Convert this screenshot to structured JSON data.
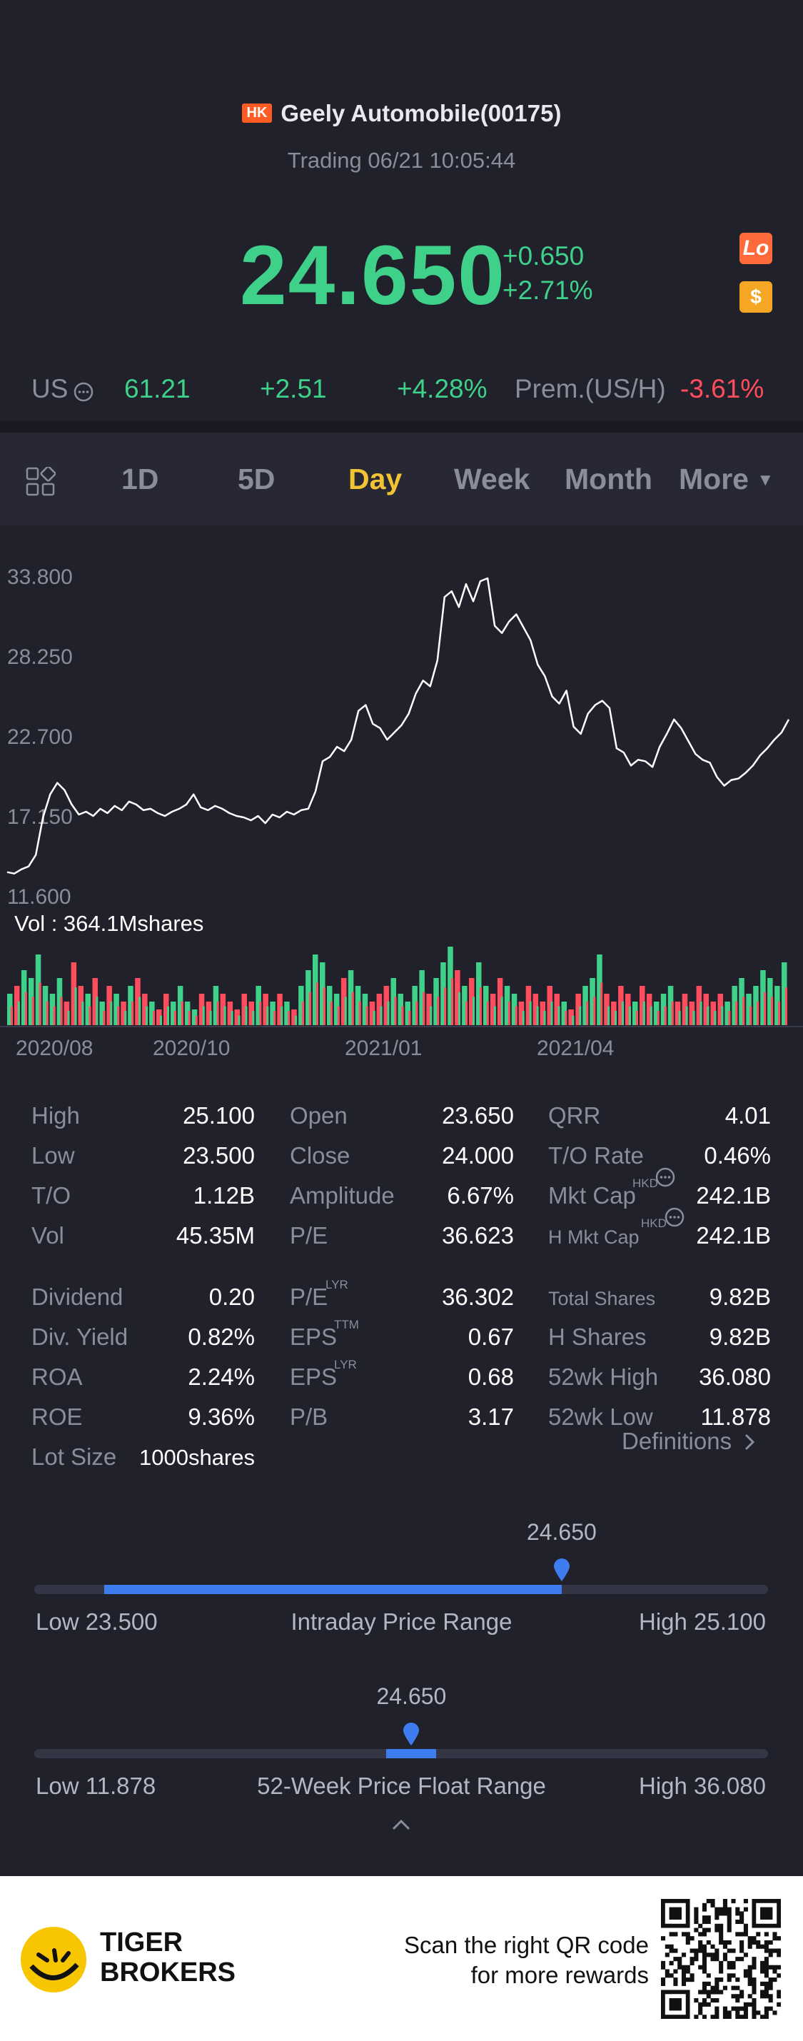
{
  "header": {
    "market_badge": "HK",
    "title": "Geely Automobile(00175)",
    "status": "Trading 06/21 10:05:44"
  },
  "quote": {
    "price": "24.650",
    "change": "+0.650",
    "change_pct": "+2.71%",
    "lo_badge": "Lo",
    "coin_badge": "$"
  },
  "us_row": {
    "label": "US",
    "price": "61.21",
    "change": "+2.51",
    "change_pct": "+4.28%",
    "premium_label": "Prem.(US/H)",
    "premium_value": "-3.61%"
  },
  "tabs": [
    {
      "label": "1D"
    },
    {
      "label": "5D"
    },
    {
      "label": "Day"
    },
    {
      "label": "Week"
    },
    {
      "label": "Month"
    },
    {
      "label": "More"
    }
  ],
  "chart_data": {
    "type": "line",
    "y_ticks": [
      "33.800",
      "28.250",
      "22.700",
      "17.150",
      "11.600"
    ],
    "ylim": [
      11.6,
      33.8
    ],
    "x_ticks": [
      "2020/08",
      "2020/10",
      "2021/01",
      "2021/04"
    ],
    "volume_label": "Vol  : 364.1Mshares",
    "series": [
      {
        "values": [
          13.2,
          13.1,
          13.4,
          13.6,
          14.4,
          17.0,
          18.6,
          19.4,
          18.9,
          17.9,
          17.2,
          17.4,
          17.1,
          17.6,
          17.3,
          17.8,
          17.5,
          18.1,
          17.9,
          17.5,
          17.6,
          17.3,
          17.1,
          17.4,
          17.6,
          17.9,
          18.6,
          17.7,
          17.5,
          17.8,
          17.6,
          17.3,
          17.1,
          17.0,
          16.8,
          17.1,
          16.6,
          17.2,
          17.0,
          17.4,
          17.2,
          17.5,
          17.6,
          18.8,
          20.9,
          21.2,
          21.9,
          21.6,
          22.4,
          24.4,
          24.8,
          23.5,
          23.2,
          22.4,
          22.9,
          23.4,
          24.2,
          25.6,
          26.5,
          26.1,
          27.9,
          32.3,
          32.7,
          31.6,
          33.2,
          32.0,
          33.4,
          33.6,
          30.3,
          29.8,
          30.6,
          31.1,
          30.2,
          29.3,
          27.6,
          26.8,
          25.4,
          24.9,
          25.8,
          23.3,
          22.8,
          24.2,
          24.8,
          25.1,
          24.6,
          21.8,
          21.5,
          20.6,
          21.0,
          20.9,
          20.5,
          21.9,
          22.8,
          23.8,
          23.2,
          22.3,
          21.4,
          21.0,
          20.8,
          19.8,
          19.2,
          19.6,
          19.7,
          20.1,
          20.6,
          21.3,
          21.8,
          22.4,
          22.9,
          23.8
        ]
      },
      {
        "name": "Vol",
        "values": [
          0.4,
          0.5,
          0.7,
          0.6,
          0.9,
          0.5,
          0.4,
          0.6,
          0.3,
          0.8,
          0.5,
          0.4,
          0.6,
          0.3,
          0.5,
          0.4,
          0.3,
          0.5,
          0.6,
          0.4,
          0.3,
          0.2,
          0.4,
          0.3,
          0.5,
          0.3,
          0.2,
          0.4,
          0.3,
          0.5,
          0.4,
          0.3,
          0.2,
          0.4,
          0.3,
          0.5,
          0.4,
          0.3,
          0.4,
          0.3,
          0.2,
          0.5,
          0.7,
          0.9,
          0.8,
          0.5,
          0.4,
          0.6,
          0.7,
          0.5,
          0.4,
          0.3,
          0.4,
          0.5,
          0.6,
          0.4,
          0.3,
          0.5,
          0.7,
          0.4,
          0.6,
          0.8,
          1.0,
          0.7,
          0.5,
          0.6,
          0.8,
          0.5,
          0.4,
          0.6,
          0.5,
          0.4,
          0.3,
          0.5,
          0.4,
          0.3,
          0.5,
          0.4,
          0.3,
          0.2,
          0.4,
          0.5,
          0.6,
          0.9,
          0.4,
          0.3,
          0.5,
          0.4,
          0.3,
          0.5,
          0.4,
          0.3,
          0.4,
          0.5,
          0.3,
          0.4,
          0.3,
          0.5,
          0.4,
          0.3,
          0.4,
          0.3,
          0.5,
          0.6,
          0.4,
          0.5,
          0.7,
          0.6,
          0.5,
          0.8
        ]
      }
    ]
  },
  "stats": {
    "col1": [
      {
        "label": "High",
        "value": "25.100"
      },
      {
        "label": "Low",
        "value": "23.500"
      },
      {
        "label": "T/O",
        "value": "1.12B"
      },
      {
        "label": "Vol",
        "value": "45.35M"
      },
      {
        "label": "Dividend",
        "value": "0.20"
      },
      {
        "label": "Div. Yield",
        "value": "0.82%"
      },
      {
        "label": "ROA",
        "value": "2.24%"
      },
      {
        "label": "ROE",
        "value": "9.36%"
      },
      {
        "label": "Lot Size",
        "value": "1000shares"
      }
    ],
    "col2": [
      {
        "label": "Open",
        "value": "23.650"
      },
      {
        "label": "Close",
        "value": "24.000"
      },
      {
        "label": "Amplitude",
        "value": "6.67%"
      },
      {
        "label": "P/E",
        "value": "36.623"
      },
      {
        "label": "P/E",
        "sup": "LYR",
        "value": "36.302"
      },
      {
        "label": "EPS",
        "sup": "TTM",
        "value": "0.67"
      },
      {
        "label": "EPS",
        "sup": "LYR",
        "value": "0.68"
      },
      {
        "label": "P/B",
        "value": "3.17"
      }
    ],
    "col3": [
      {
        "label": "QRR",
        "value": "4.01"
      },
      {
        "label": "T/O Rate",
        "value": "0.46%"
      },
      {
        "label": "Mkt Cap",
        "sup": "HKD",
        "value": "242.1B"
      },
      {
        "label": "H Mkt Cap",
        "sup": "HKD",
        "value": "242.1B"
      },
      {
        "label": "Total Shares",
        "value": "9.82B"
      },
      {
        "label": "H Shares",
        "value": "9.82B"
      },
      {
        "label": "52wk High",
        "value": "36.080"
      },
      {
        "label": "52wk Low",
        "value": "11.878"
      }
    ],
    "definitions_link": "Definitions"
  },
  "intraday_range": {
    "current": "24.650",
    "low_label": "Low 23.500",
    "title": "Intraday Price Range",
    "high_label": "High 25.100",
    "low": 23.5,
    "high": 25.1,
    "value": 24.65,
    "fill_start": 0.095
  },
  "week52_range": {
    "current": "24.650",
    "low_label": "Low 11.878",
    "title": "52-Week Price Float Range",
    "high_label": "High 36.080",
    "value": 24.65,
    "fill_start": 0.48,
    "fill_end": 0.548
  },
  "footer": {
    "brand_line1": "TIGER",
    "brand_line2": "BROKERS",
    "promo_line1": "Scan the right QR code",
    "promo_line2": "for more rewards"
  },
  "colors": {
    "background": "#20212b",
    "up_green": "#3fd08a",
    "down_red": "#ff4d5e",
    "active_tab": "#f2c433",
    "range_fill": "#3e7df0"
  }
}
